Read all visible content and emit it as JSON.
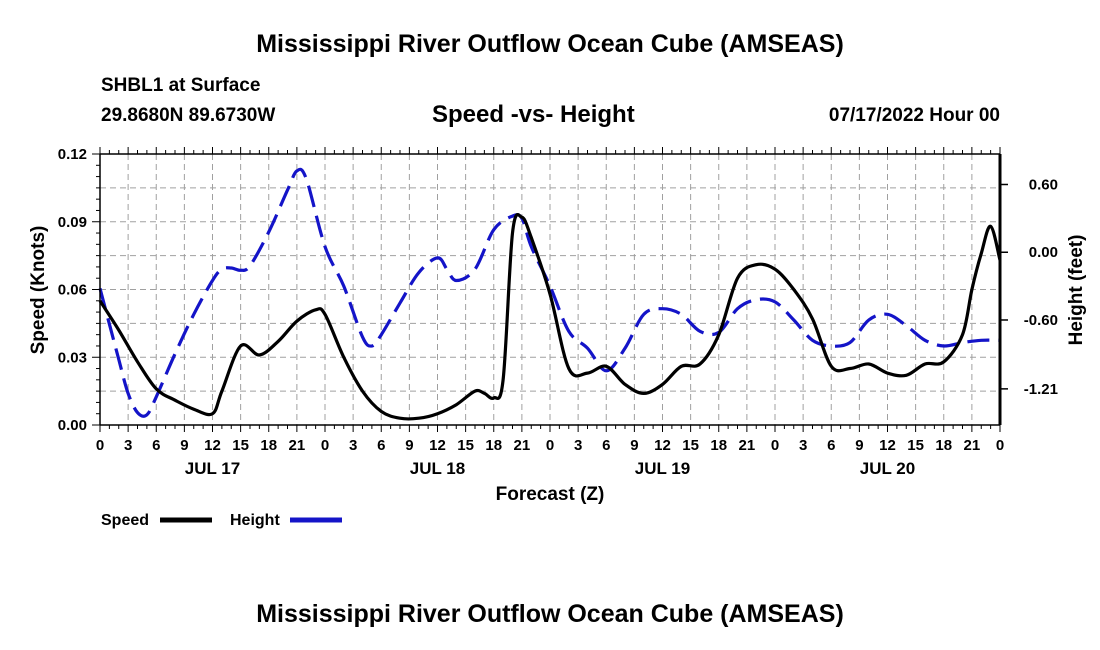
{
  "figure": {
    "title": "Mississippi River Outflow Ocean Cube (AMSEAS)",
    "station": "SHBL1 at Surface",
    "coords": "29.8680N  89.6730W",
    "subtitle": "Speed -vs- Height",
    "datetime": "07/17/2022 Hour 00",
    "bottom_title": "Mississippi River Outflow Ocean Cube (AMSEAS)"
  },
  "colors": {
    "speed": "#000000",
    "height": "#1414c8",
    "grid": "#a0a0a0"
  },
  "chart_data": {
    "type": "line",
    "title": "Speed -vs- Height",
    "xlabel": "Forecast (Z)",
    "ylabel": "Speed (Knots)",
    "y2label": "Height (feet)",
    "xlim": [
      0,
      96
    ],
    "ylim": [
      0,
      0.12
    ],
    "y2lim": [
      -1.53,
      0.87
    ],
    "hour_ticks": [
      "0",
      "3",
      "6",
      "9",
      "12",
      "15",
      "18",
      "21",
      "0",
      "3",
      "6",
      "9",
      "12",
      "15",
      "18",
      "21",
      "0",
      "3",
      "6",
      "9",
      "12",
      "15",
      "18",
      "21",
      "0",
      "3",
      "6",
      "9",
      "12",
      "15",
      "18",
      "21",
      "0"
    ],
    "day_labels": [
      {
        "label": "JUL 17",
        "hour": 12
      },
      {
        "label": "JUL 18",
        "hour": 36
      },
      {
        "label": "JUL 19",
        "hour": 60
      },
      {
        "label": "JUL 20",
        "hour": 84
      }
    ],
    "yticks": [
      0,
      0.03,
      0.06,
      0.09,
      0.12
    ],
    "ytick_labels": [
      "0.00",
      "0.03",
      "0.06",
      "0.09",
      "0.12"
    ],
    "y2ticks": [
      0.6,
      0,
      -0.6,
      -1.21
    ],
    "y2tick_labels": [
      "0.60",
      "0.00",
      "-0.60",
      "-1.21"
    ],
    "legend": {
      "placement": "bottom-left",
      "entries": [
        "Speed",
        "Height"
      ]
    },
    "series": [
      {
        "name": "Speed",
        "axis": "left",
        "style": "solid",
        "x": [
          0,
          2,
          4,
          6,
          8,
          10,
          12,
          13,
          15,
          17,
          19,
          21,
          23,
          24,
          26,
          28,
          30,
          32,
          34,
          36,
          38,
          40,
          41,
          42,
          43,
          44,
          45,
          46,
          48,
          50,
          52,
          54,
          56,
          58,
          60,
          62,
          64,
          66,
          68,
          70,
          72,
          74,
          76,
          78,
          80,
          82,
          84,
          86,
          88,
          90,
          92,
          93,
          94,
          95,
          96
        ],
        "values": [
          0.055,
          0.042,
          0.028,
          0.016,
          0.011,
          0.007,
          0.005,
          0.015,
          0.035,
          0.031,
          0.037,
          0.046,
          0.051,
          0.049,
          0.03,
          0.015,
          0.006,
          0.003,
          0.003,
          0.005,
          0.009,
          0.015,
          0.014,
          0.012,
          0.02,
          0.085,
          0.092,
          0.083,
          0.058,
          0.025,
          0.023,
          0.026,
          0.018,
          0.014,
          0.018,
          0.026,
          0.027,
          0.04,
          0.065,
          0.071,
          0.069,
          0.06,
          0.047,
          0.026,
          0.025,
          0.027,
          0.023,
          0.022,
          0.027,
          0.028,
          0.04,
          0.06,
          0.076,
          0.088,
          0.073
        ]
      },
      {
        "name": "Height",
        "axis": "right",
        "style": "dashed",
        "x": [
          0,
          2,
          3,
          4,
          5,
          6,
          8,
          10,
          12,
          13,
          14,
          15,
          16,
          18,
          20,
          21,
          22,
          24,
          26,
          28,
          29,
          30,
          32,
          34,
          36,
          37,
          38,
          40,
          42,
          44,
          45,
          46,
          48,
          50,
          52,
          54,
          56,
          58,
          60,
          62,
          64,
          66,
          68,
          70,
          72,
          74,
          76,
          78,
          80,
          82,
          84,
          86,
          88,
          90,
          92,
          94,
          96
        ],
        "values": [
          -0.32,
          -0.95,
          -1.25,
          -1.42,
          -1.44,
          -1.28,
          -0.9,
          -0.55,
          -0.25,
          -0.15,
          -0.14,
          -0.16,
          -0.12,
          0.18,
          0.55,
          0.72,
          0.65,
          0.05,
          -0.3,
          -0.75,
          -0.83,
          -0.73,
          -0.45,
          -0.18,
          -0.05,
          -0.15,
          -0.25,
          -0.15,
          0.2,
          0.32,
          0.3,
          0.05,
          -0.3,
          -0.7,
          -0.85,
          -1.05,
          -0.85,
          -0.55,
          -0.5,
          -0.55,
          -0.7,
          -0.71,
          -0.5,
          -0.42,
          -0.44,
          -0.6,
          -0.78,
          -0.83,
          -0.8,
          -0.6,
          -0.55,
          -0.65,
          -0.78,
          -0.83,
          -0.8,
          -0.78,
          -0.78
        ]
      }
    ]
  }
}
